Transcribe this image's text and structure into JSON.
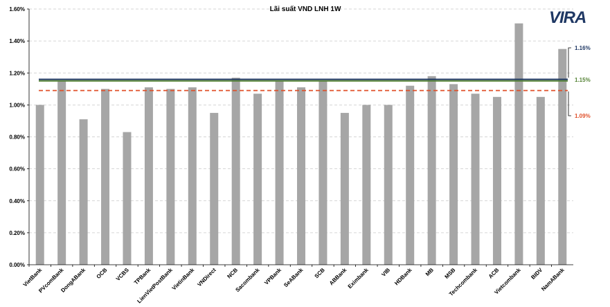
{
  "chart_data": {
    "type": "bar",
    "title": "Lãi suất VND LNH 1W",
    "logo_text": "VIRA",
    "bar_color": "#a6a6a6",
    "ylim": [
      0,
      1.6
    ],
    "yticks": [
      0.0,
      0.2,
      0.4,
      0.6,
      0.8,
      1.0,
      1.2,
      1.4,
      1.6
    ],
    "ytick_labels": [
      "0.00%",
      "0.20%",
      "0.40%",
      "0.60%",
      "0.80%",
      "1.00%",
      "1.20%",
      "1.40%",
      "1.60%"
    ],
    "grid": true,
    "categories": [
      "VietBank",
      "PVcomBank",
      "DongABank",
      "OCB",
      "VCBS",
      "TPBank",
      "LienVietPostBank",
      "VietinBank",
      "VNDirect",
      "NCB",
      "Sacombank",
      "VPBank",
      "SeABank",
      "SCB",
      "ABBank",
      "Eximbank",
      "VIB",
      "HDBank",
      "MB",
      "MSB",
      "Techcombank",
      "ACB",
      "Vietcombank",
      "BIDV",
      "NamABank"
    ],
    "values": [
      1.0,
      1.15,
      0.91,
      1.1,
      0.83,
      1.11,
      1.1,
      1.11,
      0.95,
      1.17,
      1.07,
      1.15,
      1.11,
      1.15,
      0.95,
      1.0,
      1.0,
      1.12,
      1.18,
      1.13,
      1.07,
      1.05,
      1.51,
      1.05,
      1.35
    ],
    "reference_lines": [
      {
        "value": 1.16,
        "label": "1.16%",
        "color": "#1f3864",
        "style": "solid"
      },
      {
        "value": 1.15,
        "label": "1.15%",
        "color": "#548235",
        "style": "solid"
      },
      {
        "value": 1.09,
        "label": "1.09%",
        "color": "#e0502a",
        "style": "dashed"
      }
    ]
  }
}
